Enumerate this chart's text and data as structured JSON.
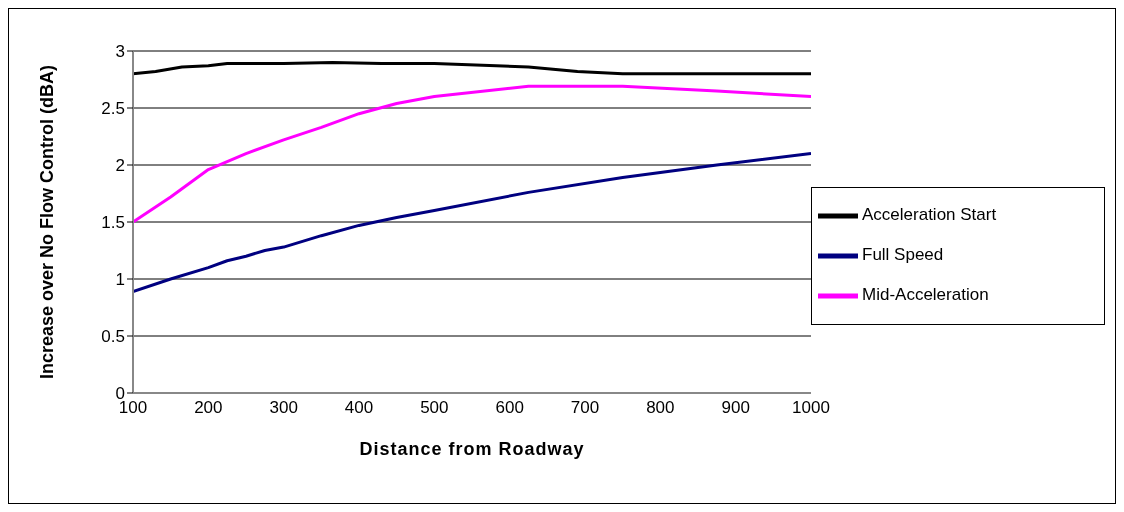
{
  "chart_data": {
    "type": "line",
    "xlabel": "Distance from Roadway",
    "ylabel": "Increase over No Flow Control (dBA)",
    "xlim": [
      100,
      1000
    ],
    "xticks": [
      100,
      200,
      300,
      400,
      500,
      600,
      700,
      800,
      900,
      1000
    ],
    "ylim": [
      0,
      3
    ],
    "yticks": [
      0,
      0.5,
      1,
      1.5,
      2,
      2.5,
      3
    ],
    "grid": "y",
    "legend": "right",
    "marker": "none",
    "line_style": "solid",
    "series": [
      {
        "name": "Full Speed",
        "color": "#000080",
        "x": [
          100,
          150,
          200,
          225,
          250,
          275,
          300,
          350,
          400,
          450,
          500,
          625,
          750,
          875,
          1000
        ],
        "values": [
          0.89,
          1.0,
          1.1,
          1.16,
          1.2,
          1.25,
          1.28,
          1.38,
          1.47,
          1.54,
          1.6,
          1.76,
          1.89,
          2.0,
          2.1
        ]
      },
      {
        "name": "Mid-Acceleration",
        "color": "#ff00ff",
        "x": [
          100,
          150,
          200,
          250,
          300,
          350,
          400,
          450,
          500,
          625,
          750,
          875,
          1000
        ],
        "values": [
          1.5,
          1.72,
          1.96,
          2.1,
          2.22,
          2.33,
          2.45,
          2.54,
          2.6,
          2.69,
          2.69,
          2.65,
          2.6
        ]
      },
      {
        "name": "Acceleration Start",
        "color": "#000000",
        "x": [
          100,
          130,
          165,
          200,
          225,
          300,
          365,
          430,
          500,
          625,
          690,
          750,
          1000
        ],
        "values": [
          2.8,
          2.82,
          2.86,
          2.87,
          2.89,
          2.89,
          2.9,
          2.89,
          2.89,
          2.86,
          2.82,
          2.8,
          2.8
        ]
      }
    ]
  }
}
